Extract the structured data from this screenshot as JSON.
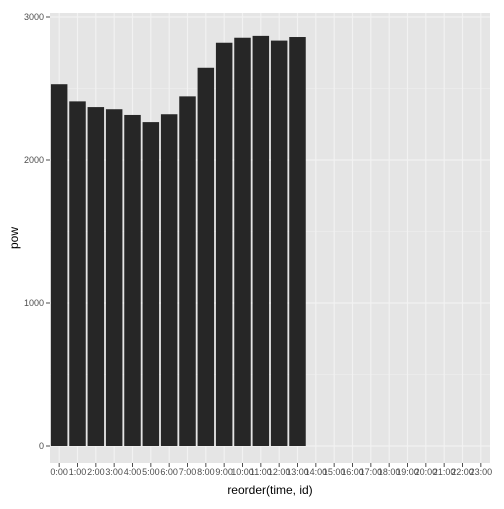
{
  "chart_data": {
    "type": "bar",
    "xlabel": "reorder(time, id)",
    "ylabel": "pow",
    "ylim": [
      0,
      3000
    ],
    "yticks": [
      0,
      1000,
      2000,
      3000
    ],
    "grid": true,
    "colors": {
      "panel": "#e5e5e5",
      "grid": "#f2f2f2",
      "bar": "#262626"
    },
    "categories": [
      "0:00",
      "1:00",
      "2:00",
      "3:00",
      "4:00",
      "5:00",
      "6:00",
      "7:00",
      "8:00",
      "9:00",
      "10:00",
      "11:00",
      "12:00",
      "13:00",
      "14:00",
      "15:00",
      "16:00",
      "17:00",
      "18:00",
      "19:00",
      "20:00",
      "21:00",
      "22:00",
      "23:00"
    ],
    "tick_labels": [
      "0:00",
      "1:00",
      "2:00",
      "3:00",
      "4:00",
      "5:00",
      "6:00",
      "7:00",
      "8:00",
      "9:00",
      "10:00",
      "11:00",
      "12:00",
      "13:00",
      "14:00",
      "15:00",
      "16:00",
      "17:00",
      "18:00",
      "19:00",
      "20:00",
      "21:00",
      "22:00",
      "23:00"
    ],
    "values": [
      2530,
      2410,
      2370,
      2355,
      2315,
      2265,
      2320,
      2445,
      2645,
      2820,
      2855,
      2868,
      2835,
      2860,
      null,
      null,
      null,
      null,
      null,
      null,
      null,
      null,
      null,
      null
    ]
  }
}
